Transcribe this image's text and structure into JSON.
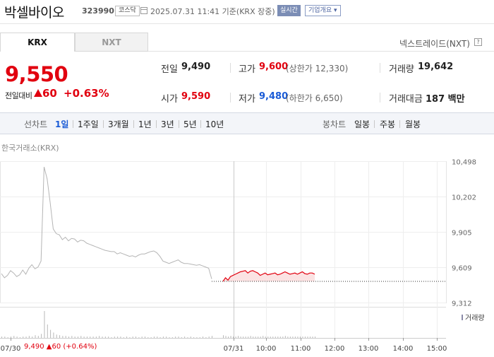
{
  "header": {
    "stock_name": "박셀바이오",
    "stock_code": "323990",
    "market_badge": "코스닥",
    "date_text": "2025.07.31 11:41 기준(KRX 장중)",
    "realtime_label": "실시간",
    "company_info_label": "기업개요 ▾"
  },
  "tabs": {
    "krx": "KRX",
    "nxt": "NXT"
  },
  "nextrade_link": "넥스트레이드(NXT)",
  "help_icon_label": "?",
  "price": {
    "current": "9,550",
    "change_label": "전일대비",
    "change_value": "60",
    "change_percent": "+0.63%"
  },
  "summary": {
    "prev_close_label": "전일",
    "prev_close": "9,490",
    "open_label": "시가",
    "open": "9,590",
    "high_label": "고가",
    "high": "9,600",
    "upper_limit": "(상한가 12,330)",
    "low_label": "저가",
    "low": "9,480",
    "lower_limit": "(하한가 6,650)",
    "volume_label": "거래량",
    "volume": "19,642",
    "amount_label": "거래대금",
    "amount": "187 백만"
  },
  "period_bar": {
    "line_chart_label": "선차트",
    "periods": [
      "1일",
      "1주일",
      "3개월",
      "1년",
      "3년",
      "5년",
      "10년"
    ],
    "active_period": "1일",
    "candle_chart_label": "봉차트",
    "candles": [
      "일봉",
      "주봉",
      "월봉"
    ]
  },
  "chart_data": {
    "type": "line",
    "exchange_label": "한국거래소(KRX)",
    "y_ticks": [
      "10,498",
      "10,202",
      "9,905",
      "9,609",
      "9,312"
    ],
    "y_tick_values": [
      10498,
      10202,
      9905,
      9609,
      9312
    ],
    "x_ticks": [
      "07/30",
      "07/31",
      "10:00",
      "11:00",
      "12:00",
      "13:00",
      "14:00",
      "15:00"
    ],
    "prev_close": 9490,
    "volume_legend": "거래량",
    "series": [
      {
        "name": "07/30",
        "values": [
          9555,
          9520,
          9540,
          9580,
          9560,
          9530,
          9545,
          9585,
          9550,
          9600,
          9630,
          9595,
          9610,
          9660,
          10450,
          10350,
          10150,
          9930,
          9890,
          9880,
          9840,
          9860,
          9830,
          9850,
          9845,
          9820,
          9835,
          9830,
          9810,
          9800,
          9790,
          9780,
          9770,
          9760,
          9750,
          9745,
          9740,
          9740,
          9720,
          9730,
          9720,
          9710,
          9700,
          9705,
          9695,
          9710,
          9720,
          9720,
          9730,
          9740,
          9745,
          9730,
          9700,
          9660,
          9650,
          9640,
          9650,
          9660,
          9670,
          9650,
          9640,
          9640,
          9635,
          9630,
          9625,
          9630,
          9620,
          9610,
          9600,
          9510
        ]
      },
      {
        "name": "07/31",
        "values": [
          9490,
          9520,
          9500,
          9530,
          9540,
          9550,
          9560,
          9570,
          9575,
          9580,
          9560,
          9575,
          9580,
          9570,
          9560,
          9540,
          9550,
          9560,
          9545,
          9550,
          9555,
          9560,
          9545,
          9550,
          9560,
          9570,
          9560,
          9550,
          9555,
          9560,
          9550,
          9560,
          9570,
          9555,
          9550,
          9560,
          9560,
          9550
        ]
      }
    ],
    "volume_30": [
      2,
      2,
      1,
      2,
      3,
      2,
      1,
      2,
      2,
      3,
      2,
      4,
      3,
      6,
      40,
      20,
      12,
      8,
      5,
      4,
      3,
      3,
      2,
      3,
      2,
      2,
      3,
      2,
      2,
      2,
      2,
      2,
      3,
      2,
      2,
      2,
      1,
      2,
      2,
      2,
      1,
      2,
      1,
      2,
      2,
      1,
      2,
      2,
      1,
      1,
      2,
      2,
      1,
      2,
      2,
      1,
      1,
      2,
      2,
      1,
      2,
      1,
      2,
      1,
      1,
      1,
      2,
      1,
      2,
      3
    ],
    "volume_31": [
      4,
      3,
      2,
      3,
      2,
      2,
      3,
      2,
      2,
      2,
      2,
      3,
      2,
      2,
      2,
      2,
      3,
      2,
      2,
      2,
      2,
      2,
      2,
      2,
      2,
      3,
      2,
      2,
      2,
      2,
      2,
      2,
      2,
      2,
      2,
      2,
      2,
      2
    ]
  },
  "bottom_info": {
    "text": "9,490 ▲60 (+0.64%)"
  }
}
